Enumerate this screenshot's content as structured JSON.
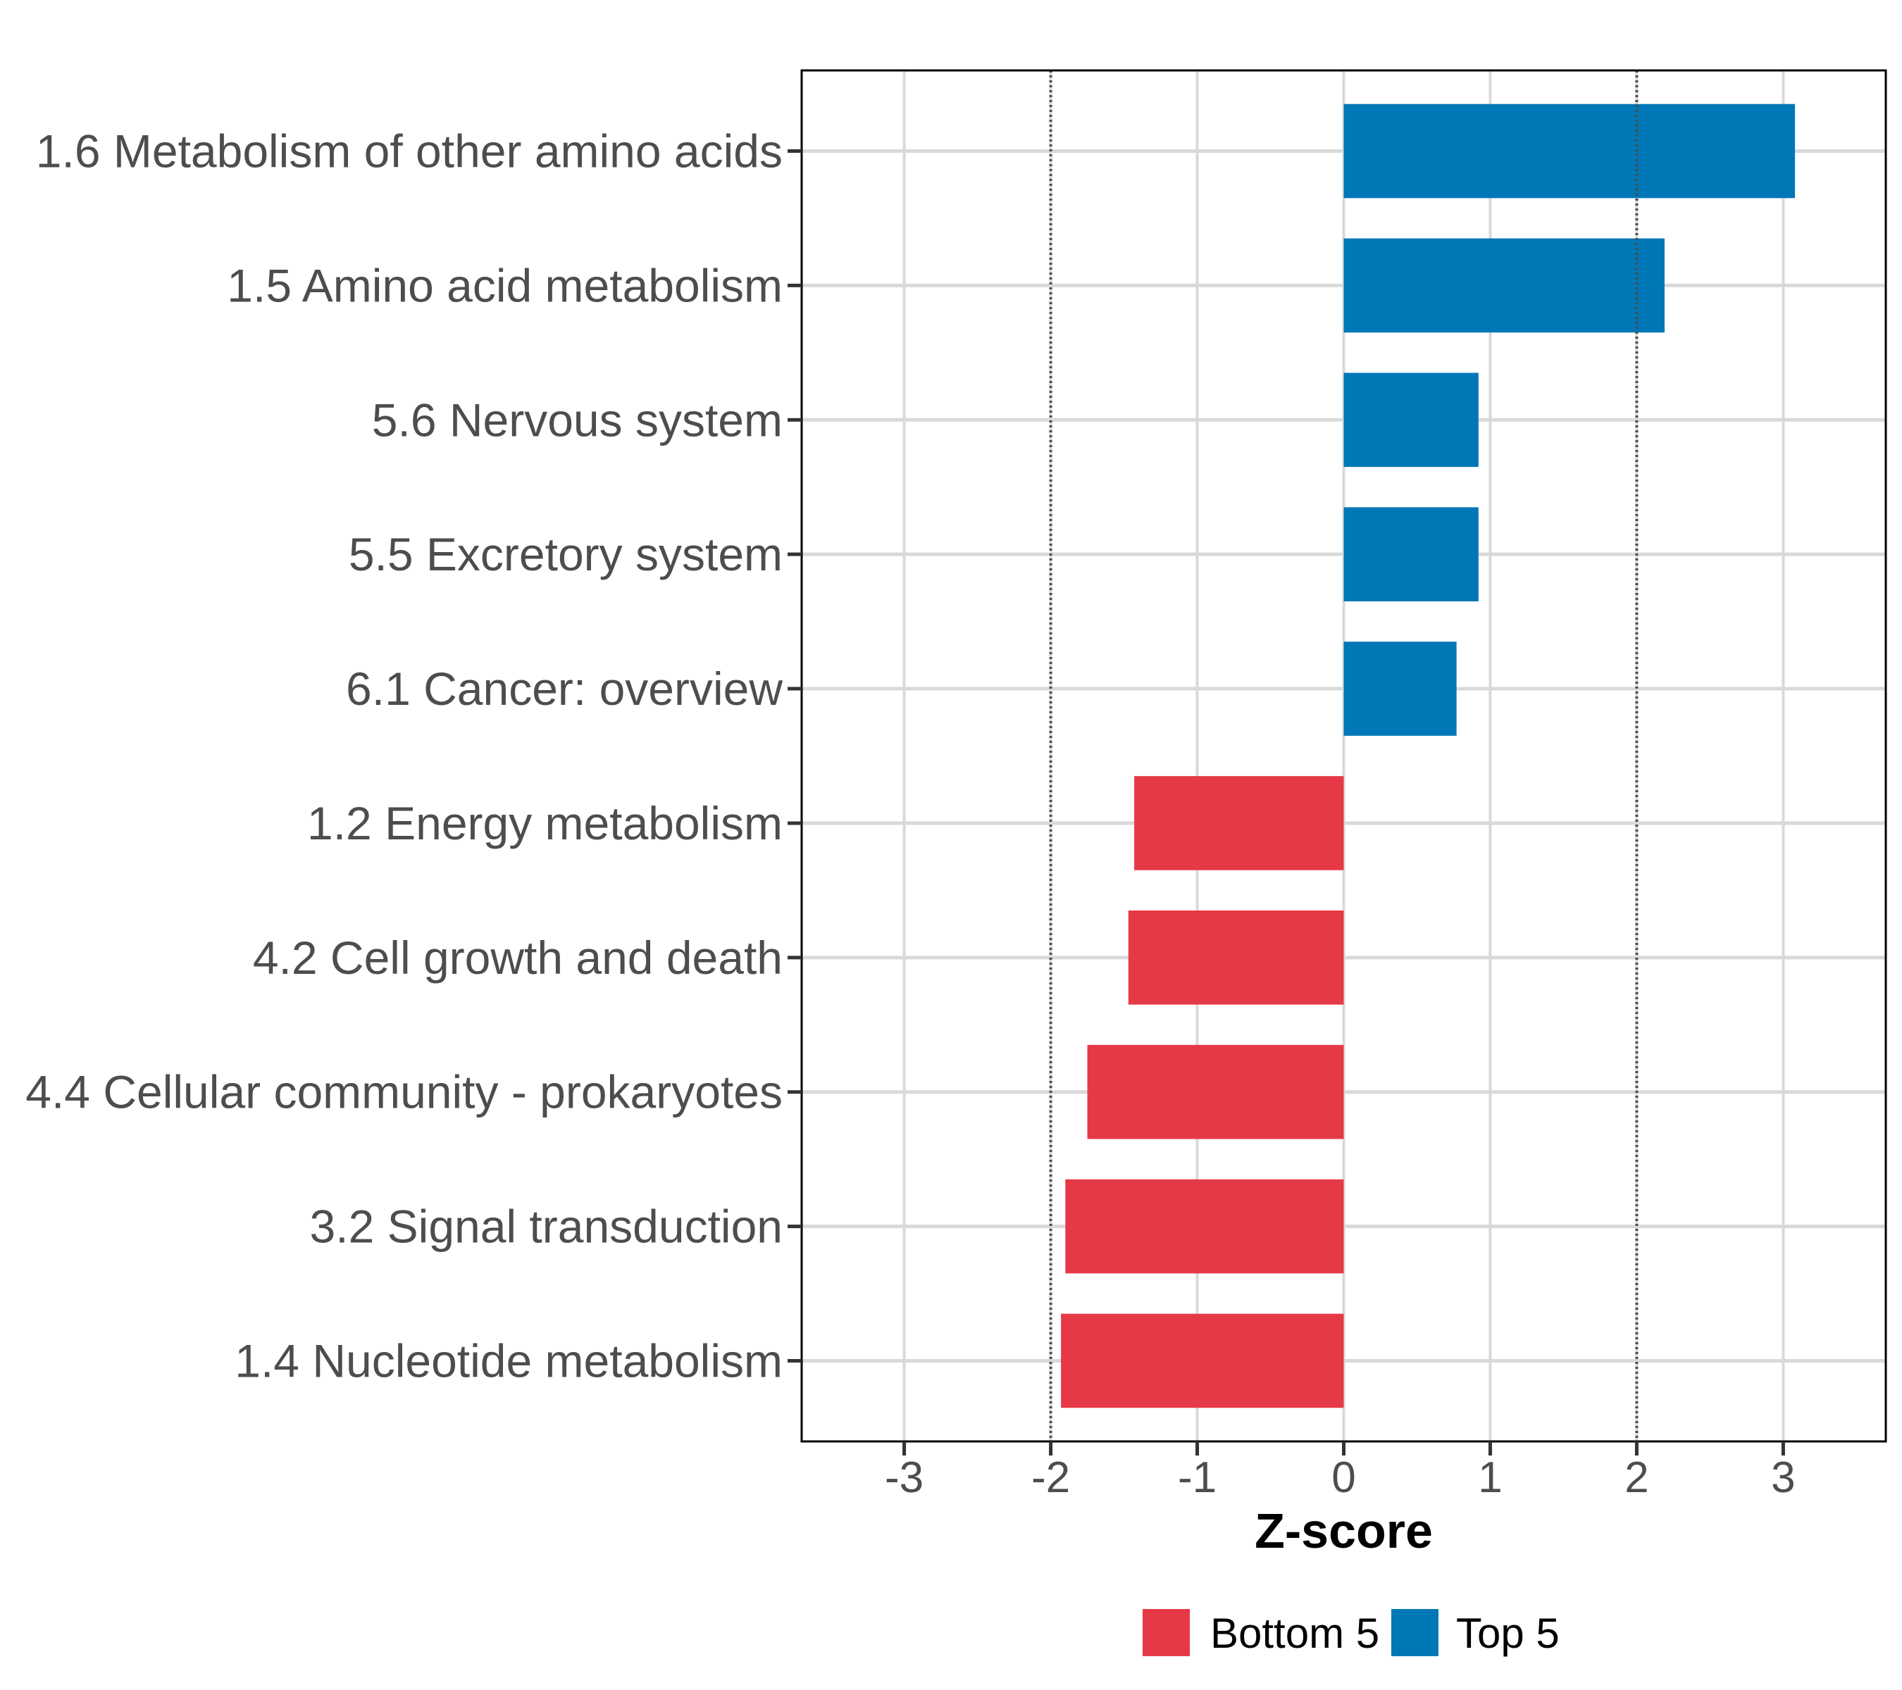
{
  "chart_data": {
    "type": "bar",
    "orientation": "horizontal",
    "title": "",
    "xlabel": "Z-score",
    "ylabel": "",
    "xlim": [
      -3.7,
      3.7
    ],
    "xticks": [
      -3,
      -2,
      -1,
      0,
      1,
      2,
      3
    ],
    "xtick_labels": [
      "-3",
      "-2",
      "-1",
      "0",
      "1",
      "2",
      "3"
    ],
    "reference_lines": [
      {
        "x": -2,
        "style": "dotted"
      },
      {
        "x": 2,
        "style": "dotted"
      }
    ],
    "grid": true,
    "legend_position": "bottom",
    "categories": [
      "1.6 Metabolism of other amino acids",
      "1.5 Amino acid metabolism",
      "5.6 Nervous system",
      "5.5 Excretory system",
      "6.1 Cancer: overview",
      "1.2 Energy metabolism",
      "4.2 Cell growth and death",
      "4.4 Cellular community - prokaryotes",
      "3.2 Signal transduction",
      "1.4 Nucleotide metabolism"
    ],
    "values": [
      3.08,
      2.19,
      0.92,
      0.92,
      0.77,
      -1.43,
      -1.47,
      -1.75,
      -1.9,
      -1.93
    ],
    "groups": [
      "Top 5",
      "Top 5",
      "Top 5",
      "Top 5",
      "Top 5",
      "Bottom 5",
      "Bottom 5",
      "Bottom 5",
      "Bottom 5",
      "Bottom 5"
    ],
    "series": [
      {
        "name": "Bottom 5",
        "color": "#E63946"
      },
      {
        "name": "Top 5",
        "color": "#0077B6"
      }
    ]
  },
  "colors": {
    "bottom": "#E63946",
    "top": "#0077B6",
    "grid": "#D9D9D9",
    "axis_text": "#4D4D4D",
    "frame": "#000000",
    "reference_line": "#4D4D4D"
  }
}
